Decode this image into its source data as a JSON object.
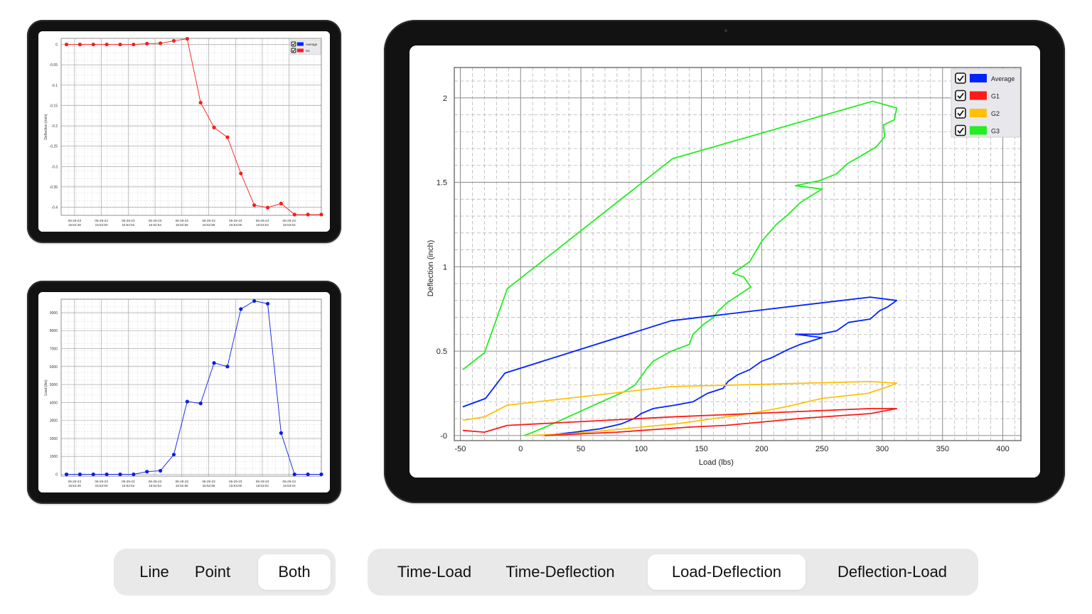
{
  "small_time_deflection": {
    "ylabel": "Deflection (inch)",
    "yticks": [
      {
        "v": 0,
        "label": "0"
      },
      {
        "v": -0.05,
        "label": "-0.05"
      },
      {
        "v": -0.1,
        "label": "-0.1"
      },
      {
        "v": -0.15,
        "label": "-0.15"
      },
      {
        "v": -0.2,
        "label": "-0.2"
      },
      {
        "v": -0.25,
        "label": "-0.25"
      },
      {
        "v": -0.3,
        "label": "-0.3"
      },
      {
        "v": -0.35,
        "label": "-0.35"
      },
      {
        "v": -0.4,
        "label": "-0.4"
      }
    ],
    "xticks": [
      {
        "v": 0.6,
        "date": "06-29-23",
        "time": "15:52:48"
      },
      {
        "v": 2.6,
        "date": "06-29-23",
        "time": "15:52:50"
      },
      {
        "v": 4.6,
        "date": "06-29-23",
        "time": "15:52:52"
      },
      {
        "v": 6.6,
        "date": "06-29-23",
        "time": "15:52:54"
      },
      {
        "v": 8.6,
        "date": "06-29-23",
        "time": "15:52:56"
      },
      {
        "v": 10.6,
        "date": "06-29-23",
        "time": "15:52:58"
      },
      {
        "v": 12.6,
        "date": "06-29-23",
        "time": "15:53:00"
      },
      {
        "v": 14.6,
        "date": "06-29-23",
        "time": "15:53:02"
      },
      {
        "v": 16.6,
        "date": "06-29-23",
        "time": "15:53:04"
      }
    ],
    "legend": [
      {
        "name": "Average",
        "color": "#0022ff",
        "checked": true
      },
      {
        "name": "G1",
        "color": "#ff1a1a",
        "checked": true
      }
    ]
  },
  "small_time_load": {
    "ylabel": "Load (lbs)",
    "yticks": [
      {
        "v": 9000,
        "label": "9000"
      },
      {
        "v": 8000,
        "label": "8000"
      },
      {
        "v": 7000,
        "label": "7000"
      },
      {
        "v": 6000,
        "label": "6000"
      },
      {
        "v": 5000,
        "label": "5000"
      },
      {
        "v": 4000,
        "label": "4000"
      },
      {
        "v": 3000,
        "label": "3000"
      },
      {
        "v": 2000,
        "label": "2000"
      },
      {
        "v": 1000,
        "label": "1000"
      },
      {
        "v": 0,
        "label": "0"
      }
    ],
    "xticks": [
      {
        "v": 0.6,
        "date": "06-29-23",
        "time": "15:52:48"
      },
      {
        "v": 2.6,
        "date": "06-29-23",
        "time": "15:52:50"
      },
      {
        "v": 4.6,
        "date": "06-29-23",
        "time": "15:52:52"
      },
      {
        "v": 6.6,
        "date": "06-29-23",
        "time": "15:52:54"
      },
      {
        "v": 8.6,
        "date": "06-29-23",
        "time": "15:52:56"
      },
      {
        "v": 10.6,
        "date": "06-29-23",
        "time": "15:52:58"
      },
      {
        "v": 12.6,
        "date": "06-29-23",
        "time": "15:53:00"
      },
      {
        "v": 14.6,
        "date": "06-29-23",
        "time": "15:53:02"
      },
      {
        "v": 16.6,
        "date": "06-29-23",
        "time": "15:53:04"
      }
    ]
  },
  "main_chart": {
    "xlabel": "Load (lbs)",
    "ylabel": "Deflection (inch)",
    "xticks": [
      "-50",
      "0",
      "50",
      "100",
      "150",
      "200",
      "250",
      "300",
      "350",
      "400"
    ],
    "yticks": [
      "-0",
      "0.5",
      "1",
      "1.5",
      "2"
    ],
    "legend": [
      {
        "name": "Average",
        "color": "#0022ff",
        "checked": true
      },
      {
        "name": "G1",
        "color": "#ff1a1a",
        "checked": true
      },
      {
        "name": "G2",
        "color": "#ffc107",
        "checked": true
      },
      {
        "name": "G3",
        "color": "#22ee22",
        "checked": true
      }
    ]
  },
  "chart_data": [
    {
      "type": "line",
      "title": "",
      "xlabel": "",
      "ylabel": "Deflection (inch)",
      "xlim": [
        -0.4,
        19
      ],
      "ylim": [
        -0.42,
        0.015
      ],
      "series": [
        {
          "name": "G1",
          "color": "#ff1a1a",
          "markers": true,
          "x": [
            0,
            1,
            2,
            3,
            4,
            5,
            6,
            7,
            8,
            9,
            10,
            11,
            12,
            13,
            14,
            15,
            16,
            17,
            18,
            19
          ],
          "y": [
            0,
            0,
            0,
            0,
            0,
            0,
            0.002,
            0.003,
            0.009,
            0.014,
            -0.143,
            -0.204,
            -0.228,
            -0.317,
            -0.395,
            -0.401,
            -0.391,
            -0.418,
            -0.418,
            -0.418
          ]
        }
      ]
    },
    {
      "type": "line",
      "title": "",
      "xlabel": "",
      "ylabel": "Load (lbs)",
      "xlim": [
        -0.4,
        19
      ],
      "ylim": [
        -100,
        9750
      ],
      "series": [
        {
          "name": "Average",
          "color": "#0a1ee6",
          "markers": true,
          "x": [
            0,
            1,
            2,
            3,
            4,
            5,
            6,
            7,
            8,
            9,
            10,
            11,
            12,
            13,
            14,
            15,
            16,
            17,
            18,
            19
          ],
          "y": [
            0,
            0,
            0,
            0,
            0,
            0,
            150,
            200,
            1100,
            4050,
            3950,
            6200,
            6000,
            9200,
            9650,
            9500,
            2300,
            0,
            0,
            0
          ]
        }
      ]
    },
    {
      "type": "line",
      "title": "",
      "xlabel": "Load (lbs)",
      "ylabel": "Deflection (inch)",
      "xlim": [
        -55,
        415
      ],
      "ylim": [
        -0.03,
        2.18
      ],
      "series": [
        {
          "name": "G3",
          "color": "#22ee22",
          "x": [
            -48,
            -30,
            -11,
            126,
            292,
            312,
            310,
            301,
            302,
            295,
            288,
            271,
            262,
            248,
            228,
            250,
            232,
            222,
            212,
            200,
            190,
            176,
            185,
            191,
            172,
            164,
            160,
            152,
            143,
            140,
            125,
            110,
            105,
            99,
            95,
            86,
            61,
            30,
            14,
            3
          ],
          "y": [
            0.39,
            0.49,
            0.87,
            1.64,
            1.98,
            1.94,
            1.87,
            1.84,
            1.77,
            1.71,
            1.68,
            1.61,
            1.55,
            1.51,
            1.48,
            1.46,
            1.38,
            1.31,
            1.25,
            1.15,
            1.03,
            0.96,
            0.94,
            0.88,
            0.79,
            0.74,
            0.7,
            0.66,
            0.6,
            0.54,
            0.5,
            0.44,
            0.4,
            0.34,
            0.3,
            0.26,
            0.18,
            0.08,
            0.03,
            0.0
          ]
        },
        {
          "name": "Average",
          "color": "#0022ff",
          "x": [
            -48,
            -29,
            -13,
            125,
            290,
            312,
            304,
            298,
            290,
            272,
            262,
            248,
            228,
            250,
            232,
            222,
            208,
            200,
            190,
            180,
            172,
            168,
            155,
            143,
            128,
            110,
            100,
            94,
            84,
            66,
            45,
            20
          ],
          "y": [
            0.17,
            0.22,
            0.37,
            0.68,
            0.82,
            0.8,
            0.76,
            0.74,
            0.69,
            0.67,
            0.62,
            0.6,
            0.6,
            0.58,
            0.54,
            0.51,
            0.46,
            0.44,
            0.39,
            0.36,
            0.32,
            0.28,
            0.25,
            0.2,
            0.18,
            0.16,
            0.13,
            0.1,
            0.07,
            0.04,
            0.02,
            0.0
          ]
        },
        {
          "name": "G2",
          "color": "#ffc107",
          "x": [
            -48,
            -30,
            -11,
            125,
            290,
            312,
            305,
            288,
            250,
            220,
            190,
            160,
            130,
            100,
            72,
            40,
            5
          ],
          "y": [
            0.09,
            0.11,
            0.18,
            0.29,
            0.32,
            0.31,
            0.29,
            0.25,
            0.22,
            0.17,
            0.13,
            0.1,
            0.07,
            0.05,
            0.03,
            0.01,
            0.0
          ]
        },
        {
          "name": "G1",
          "color": "#ff1a1a",
          "x": [
            -48,
            -30,
            -11,
            125,
            290,
            312,
            290,
            230,
            200,
            170,
            140,
            120,
            100,
            80,
            50,
            20
          ],
          "y": [
            0.03,
            0.02,
            0.06,
            0.11,
            0.16,
            0.16,
            0.13,
            0.1,
            0.08,
            0.06,
            0.05,
            0.04,
            0.03,
            0.02,
            0.01,
            0.0
          ]
        }
      ]
    }
  ],
  "plot_type_selector": {
    "items": [
      "Line",
      "Point",
      "Both"
    ],
    "selected": "Both"
  },
  "chart_view_selector": {
    "items": [
      "Time-Load",
      "Time-Deflection",
      "Load-Deflection",
      "Deflection-Load"
    ],
    "selected": "Load-Deflection"
  }
}
